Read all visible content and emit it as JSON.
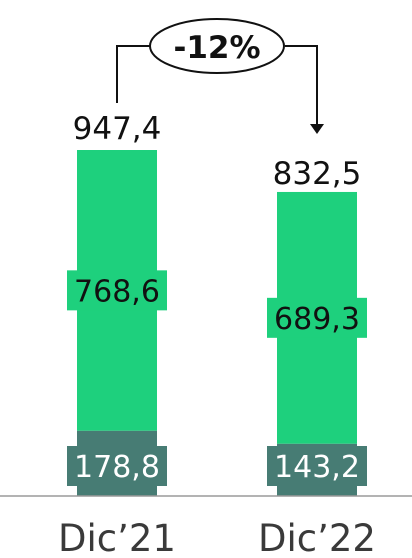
{
  "chart_data": {
    "type": "bar",
    "stacked": true,
    "categories": [
      "Dic'21",
      "Dic'22"
    ],
    "series": [
      {
        "values": [
          178.8,
          143.2
        ],
        "labels": [
          "178,8",
          "143,2"
        ],
        "color": "#477c74"
      },
      {
        "values": [
          768.6,
          689.3
        ],
        "labels": [
          "768,6",
          "689,3"
        ],
        "color": "#1ed07d"
      }
    ],
    "totals": [
      947.4,
      832.5
    ],
    "total_labels": [
      "947,4",
      "832,5"
    ],
    "change_label": "-12%",
    "category_labels": [
      "Dic’21",
      "Dic’22"
    ],
    "title": "",
    "xlabel": "",
    "ylabel": "",
    "ylim": [
      0,
      947.4
    ],
    "grid": false,
    "legend": "none"
  }
}
